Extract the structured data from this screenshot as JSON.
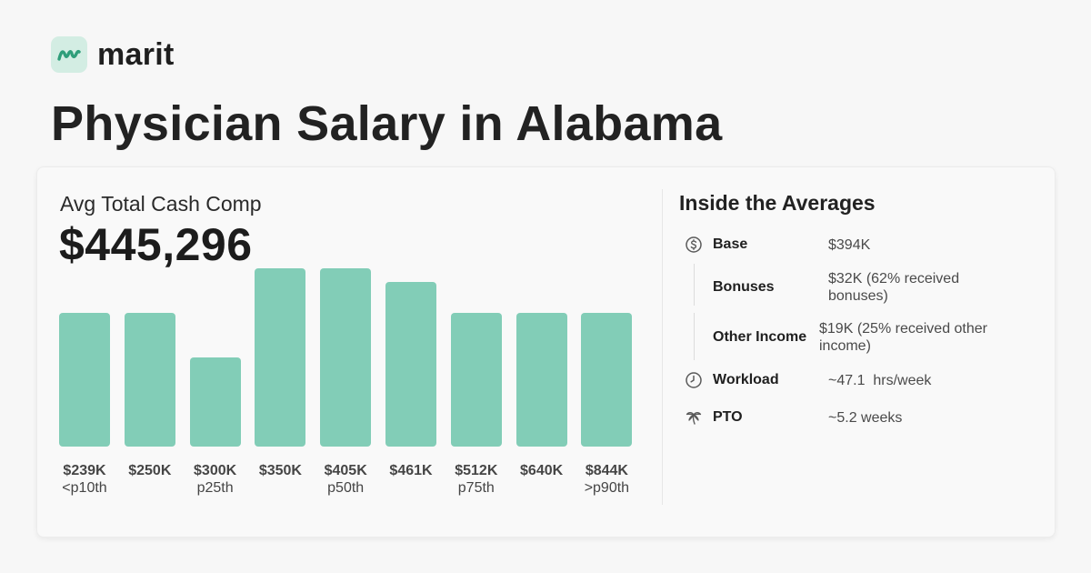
{
  "brand": {
    "name": "marit",
    "icon": "marit-logo-icon",
    "accent": "#2f9e7a"
  },
  "page": {
    "title": "Physician Salary in Alabama"
  },
  "comp": {
    "label": "Avg Total Cash Comp",
    "value": "$445,296"
  },
  "chart_data": {
    "type": "bar",
    "categories": [
      "$239K",
      "$250K",
      "$300K",
      "$350K",
      "$405K",
      "$461K",
      "$512K",
      "$640K",
      "$844K"
    ],
    "percentile_labels": [
      "<p10th",
      "",
      "p25th",
      "",
      "p50th",
      "",
      "p75th",
      "",
      ">p90th"
    ],
    "values": [
      3,
      3,
      2,
      4,
      4,
      3.7,
      3,
      3,
      3
    ],
    "bar_color": "#82cdb7",
    "title": "",
    "xlabel": "",
    "ylabel": ""
  },
  "averages": {
    "title": "Inside the Averages",
    "rows": [
      {
        "label": "Base",
        "value": "$394K",
        "icon": "dollar-circle-icon"
      },
      {
        "label": "Bonuses",
        "value": "$32K (62% received bonuses)",
        "icon": ""
      },
      {
        "label": "Other Income",
        "value": "$19K (25% received other income)",
        "icon": ""
      },
      {
        "label": "Workload",
        "value": "~47.1  hrs/week",
        "icon": "clock-icon"
      },
      {
        "label": "PTO",
        "value": "~5.2 weeks",
        "icon": "palm-tree-icon"
      }
    ]
  }
}
